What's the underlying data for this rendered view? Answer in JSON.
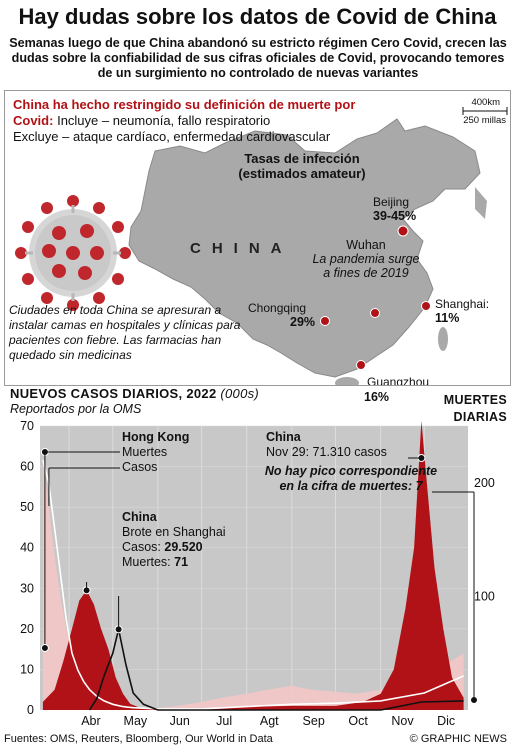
{
  "title": "Hay dudas sobre los datos de Covid de China",
  "subtitle": "Semanas luego de que China abandonó su estricto régimen Cero Covid, crecen las dudas sobre la confiabilidad de sus cifras oficiales de Covid, provocando temores de un surgimiento no controlado de nuevas variantes",
  "map": {
    "death_def_heading": "China ha hecho restringido su definición de muerte por Covid:",
    "death_def_include": "Incluye – neumonía, fallo respiratorio",
    "death_def_exclude": "Excluye – ataque cardíaco, enfermedad cardiovascular",
    "scale_km": "400km",
    "scale_mi": "250 millas",
    "infection_title": "Tasas de infección (estimados amateur)",
    "country_label": "CHINA",
    "cities": [
      {
        "name": "Beijing",
        "pct": "39-45%"
      },
      {
        "name": "Chongqing",
        "pct": "29%"
      },
      {
        "name": "Shanghai:",
        "pct": "11%"
      },
      {
        "name": "Guangzhou",
        "pct": "16%"
      }
    ],
    "wuhan_name": "Wuhan",
    "wuhan_note": "La pandemia surge a fines de 2019",
    "beds_note": "Ciudades en toda China se apresuran a instalar camas en hospitales y clínicas para pacientes con fiebre. Las farmacias han quedado sin medicinas",
    "colors": {
      "land": "#a9a9a9",
      "dot": "#b01217",
      "virus": "#c0272d"
    }
  },
  "chart": {
    "title": "NUEVOS CASOS DIARIOS, 2022",
    "unit": "(000s)",
    "subtitle": "Reportados por la OMS",
    "deaths_title": "MUERTES DIARIAS",
    "hk_label": "Hong Kong",
    "hk_deaths_label": "Muertes",
    "hk_cases_label": "Casos",
    "shanghai_label": "China",
    "shanghai_line1": "Brote en Shanghai",
    "shanghai_cases_label": "Casos:",
    "shanghai_cases": "29.520",
    "shanghai_deaths_label": "Muertes:",
    "shanghai_deaths": "71",
    "nov_label": "China",
    "nov_line": "Nov 29: 71.310 casos",
    "nov_note": "No hay pico correspondiente en la cifra de muertes: 7"
  },
  "chart_data": {
    "type": "area",
    "title": "NUEVOS CASOS DIARIOS, 2022",
    "subtitle": "Reportados por la OMS",
    "x_categories": [
      "Abr",
      "May",
      "Jun",
      "Jul",
      "Agt",
      "Sep",
      "Oct",
      "Nov",
      "Dic"
    ],
    "y_left": {
      "label": "NUEVOS CASOS DIARIOS (000s)",
      "ticks": [
        0,
        10,
        20,
        30,
        40,
        50,
        60,
        70
      ],
      "range": [
        0,
        70
      ]
    },
    "y_right": {
      "label": "MUERTES DIARIAS",
      "ticks": [
        100,
        200
      ],
      "range": [
        0,
        250
      ]
    },
    "series": [
      {
        "name": "Hong Kong Casos",
        "axis": "left",
        "x": [
          "Mar 14",
          "Mar 18",
          "Mar 22",
          "Mar 26",
          "Mar 30",
          "Abr 3",
          "Abr 7",
          "Abr 11",
          "Abr 15",
          "Abr 20",
          "Abr 25",
          "May 1",
          "May 8",
          "May 15",
          "May 22",
          "Jun 1",
          "Jun 15",
          "Jul 1",
          "Jul 15",
          "Ago 1",
          "Ago 15",
          "Sep 1",
          "Sep 15",
          "Oct 1",
          "Oct 15",
          "Nov 1",
          "Nov 15",
          "Dic 1",
          "Dic 15",
          "Dic 28"
        ],
        "values": [
          63,
          50,
          38,
          28,
          20,
          14,
          9,
          6,
          4,
          2.5,
          1.2,
          0.6,
          0.4,
          0.3,
          0.3,
          0.5,
          1,
          2,
          3,
          4,
          5,
          6,
          5,
          4.5,
          4,
          5,
          6,
          10,
          11,
          14
        ]
      },
      {
        "name": "Hong Kong Muertes",
        "axis": "right",
        "x": [
          "Mar 14",
          "Mar 18",
          "Mar 22",
          "Mar 26",
          "Mar 30",
          "Abr 3",
          "Abr 7",
          "Abr 11",
          "Abr 15",
          "Abr 20",
          "Abr 25",
          "May 1",
          "May 8",
          "May 15",
          "Jun 1",
          "Jul 1",
          "Ago 1",
          "Sep 1",
          "Oct 1",
          "Nov 1",
          "Dic 1",
          "Dic 28"
        ],
        "values": [
          220,
          200,
          160,
          120,
          80,
          50,
          35,
          25,
          18,
          12,
          8,
          5,
          3,
          2,
          1,
          1,
          3,
          5,
          6,
          8,
          15,
          30
        ]
      },
      {
        "name": "China Casos",
        "axis": "left",
        "x": [
          "Mar 14",
          "Mar 22",
          "Mar 28",
          "Abr 3",
          "Abr 8",
          "Abr 13",
          "Abr 18",
          "Abr 23",
          "Abr 28",
          "May 3",
          "May 8",
          "May 13",
          "May 20",
          "Jun 1",
          "Jul 1",
          "Ago 1",
          "Sep 1",
          "Oct 1",
          "Oct 20",
          "Nov 1",
          "Nov 10",
          "Nov 18",
          "Nov 24",
          "Nov 29",
          "Dic 3",
          "Dic 8",
          "Dic 14",
          "Dic 20",
          "Dic 28"
        ],
        "values": [
          2,
          5,
          12,
          20,
          27,
          29.5,
          26,
          20,
          15,
          8,
          4,
          1.5,
          0.5,
          0.2,
          0.3,
          0.8,
          1,
          1,
          2,
          4,
          10,
          25,
          40,
          71.3,
          55,
          35,
          20,
          8,
          3
        ]
      },
      {
        "name": "China Muertes",
        "axis": "right",
        "x": [
          "Abr 15",
          "Abr 20",
          "Abr 25",
          "May 1",
          "May 5",
          "May 10",
          "May 15",
          "May 22",
          "Jun 1",
          "Jul 1",
          "Ago 1",
          "Sep 1",
          "Oct 1",
          "Nov 1",
          "Nov 29",
          "Dic 28"
        ],
        "values": [
          0,
          10,
          30,
          50,
          71,
          40,
          15,
          5,
          0,
          0,
          0,
          0,
          0,
          0,
          7,
          8
        ]
      }
    ],
    "annotations": [
      {
        "text": "Brote en Shanghai",
        "cases": "29.520",
        "deaths": "71"
      },
      {
        "text": "Nov 29: 71.310 casos"
      },
      {
        "text": "No hay pico correspondiente en la cifra de muertes: 7"
      }
    ],
    "colors": {
      "china_cases": "#b01217",
      "hk_cases": "#f3c6c6",
      "china_deaths": "#111111",
      "hk_deaths": "#ffffff",
      "background": "#c8c8c8"
    }
  },
  "footer": {
    "sources": "Fuentes: OMS, Reuters, Bloomberg, Our World in Data",
    "copyright": "© GRAPHIC NEWS"
  }
}
